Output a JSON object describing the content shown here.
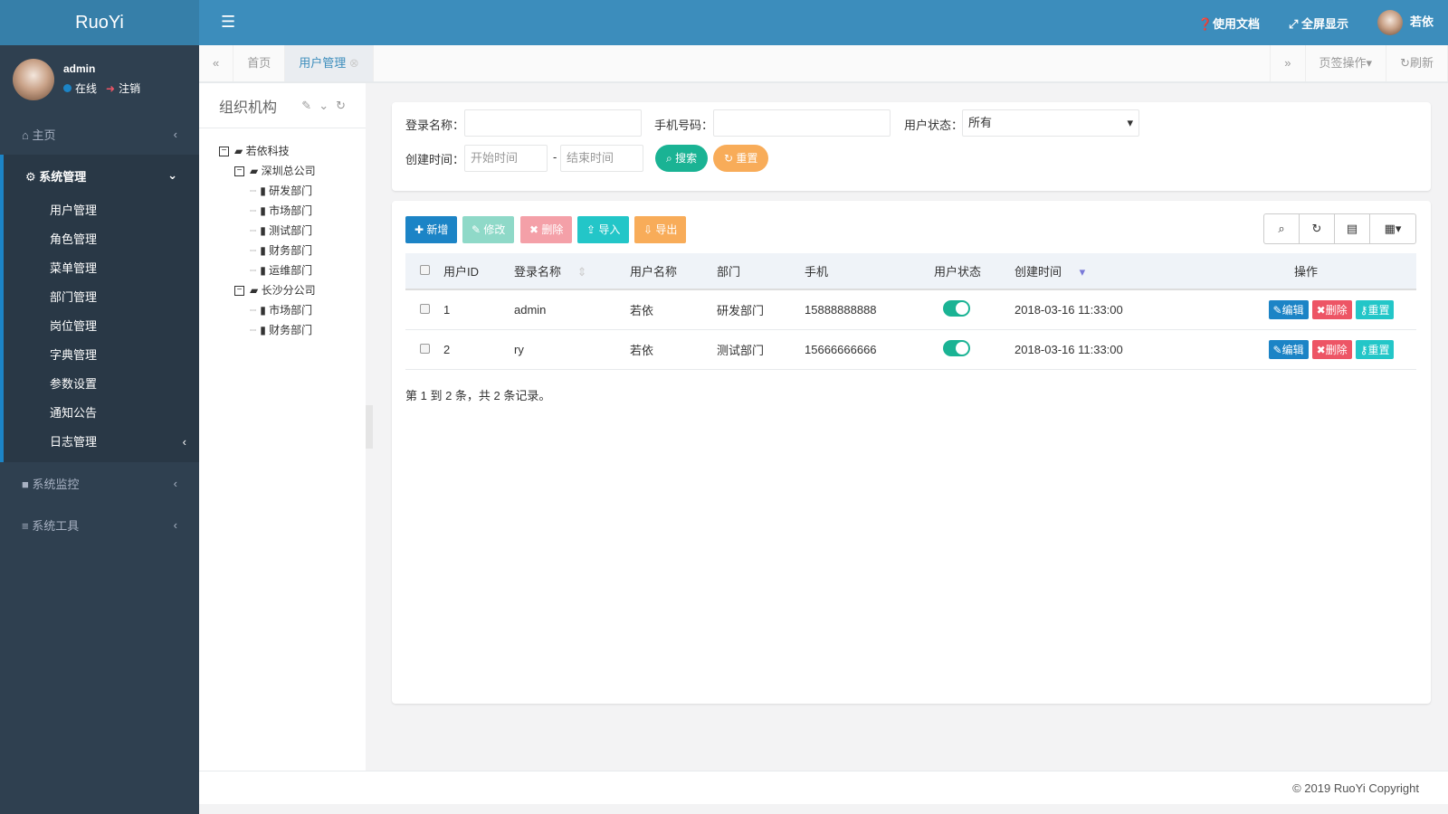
{
  "app": {
    "logo": "RuoYi"
  },
  "user": {
    "name": "admin",
    "status": "在线",
    "logout": "注销"
  },
  "sidebar": {
    "items": [
      {
        "label": "主页",
        "icon": "home-icon"
      },
      {
        "label": "系统管理",
        "icon": "gear-icon",
        "children": [
          "用户管理",
          "角色管理",
          "菜单管理",
          "部门管理",
          "岗位管理",
          "字典管理",
          "参数设置",
          "通知公告",
          "日志管理"
        ]
      },
      {
        "label": "系统监控",
        "icon": "video-icon"
      },
      {
        "label": "系统工具",
        "icon": "bars-icon"
      }
    ]
  },
  "topbar": {
    "docs": "使用文档",
    "fullscreen": "全屏显示",
    "user": "若依"
  },
  "tabs": {
    "items": [
      "首页",
      "用户管理"
    ],
    "tab_ops": "页签操作",
    "refresh": "刷新"
  },
  "tree": {
    "title": "组织机构",
    "nodes": [
      "若依科技",
      "深圳总公司",
      "研发部门",
      "市场部门",
      "测试部门",
      "财务部门",
      "运维部门",
      "长沙分公司",
      "市场部门",
      "财务部门"
    ]
  },
  "search": {
    "login_label": "登录名称：",
    "phone_label": "手机号码：",
    "status_label": "用户状态：",
    "status_value": "所有",
    "time_label": "创建时间：",
    "start_ph": "开始时间",
    "end_ph": "结束时间",
    "search_btn": "搜索",
    "reset_btn": "重置"
  },
  "toolbar": {
    "add": "新增",
    "edit": "修改",
    "delete": "删除",
    "import": "导入",
    "export": "导出"
  },
  "table": {
    "columns": [
      "用户ID",
      "登录名称",
      "用户名称",
      "部门",
      "手机",
      "用户状态",
      "创建时间",
      "操作"
    ],
    "rows": [
      {
        "id": "1",
        "login": "admin",
        "name": "若依",
        "dept": "研发部门",
        "phone": "15888888888",
        "enabled": true,
        "created": "2018-03-16 11:33:00"
      },
      {
        "id": "2",
        "login": "ry",
        "name": "若依",
        "dept": "测试部门",
        "phone": "15666666666",
        "enabled": true,
        "created": "2018-03-16 11:33:00"
      }
    ],
    "actions": {
      "edit": "编辑",
      "delete": "删除",
      "reset": "重置"
    },
    "info": "第 1 到 2 条，共 2 条记录。"
  },
  "footer": "© 2019 RuoYi Copyright",
  "colors": {
    "primary": "#1c84c6",
    "success": "#1ab394",
    "danger": "#ed5565",
    "info": "#23c6c8",
    "warning": "#f8ac59",
    "header": "#3c8dbc",
    "sidebar": "#2f4050"
  }
}
